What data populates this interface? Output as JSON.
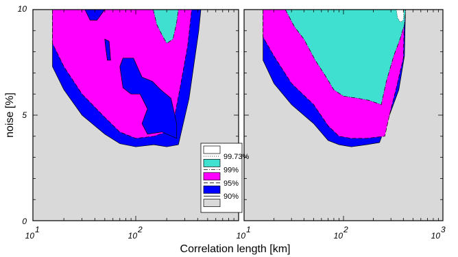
{
  "chart_data": {
    "type": "area",
    "subtype": "confidence-contour",
    "xlabel": "Correlation length [km]",
    "ylabel": "noise [%]",
    "xscale": "log",
    "xlim": [
      10,
      1000
    ],
    "ylim": [
      0,
      10
    ],
    "x_tick_labels": [
      {
        "base": "10",
        "exp": "1"
      },
      {
        "base": "10",
        "exp": "2"
      },
      {
        "base": "10",
        "exp": "3"
      }
    ],
    "y_tick_labels": [
      "0",
      "5",
      "10"
    ],
    "grid": false,
    "legend_placement": "bottom-center",
    "legend": [
      {
        "label": "99.73%",
        "fill": "#ffffff",
        "line": "dotted"
      },
      {
        "label": "99%",
        "fill": "#40e0d0",
        "line": "dash-dot"
      },
      {
        "label": "95%",
        "fill": "#ff00ff",
        "line": "dashed"
      },
      {
        "label": "90%",
        "fill": "#0000ff",
        "line": "solid"
      },
      {
        "label": "",
        "fill": "#d9d9d9",
        "line": "none"
      }
    ],
    "colors": {
      "background": "#d9d9d9",
      "c90": "#0000ff",
      "c95": "#ff00ff",
      "c99": "#40e0d0",
      "c9973": "#ffffff"
    },
    "panels": [
      {
        "name": "left",
        "regions": [
          {
            "level": "90%",
            "fill": "#0000ff",
            "line": "solid",
            "points": [
              [
                15.5,
                10
              ],
              [
                15.5,
                7.3
              ],
              [
                20,
                6.2
              ],
              [
                30,
                5.0
              ],
              [
                50,
                4.1
              ],
              [
                70,
                3.65
              ],
              [
                100,
                3.5
              ],
              [
                150,
                3.6
              ],
              [
                200,
                3.5
              ],
              [
                260,
                3.6
              ],
              [
                330,
                5.8
              ],
              [
                410,
                9.0
              ],
              [
                430,
                10
              ]
            ]
          },
          {
            "level": "95%",
            "fill": "#ff00ff",
            "line": "dashed",
            "points": [
              [
                15.5,
                10
              ],
              [
                15.5,
                8.4
              ],
              [
                20,
                7.3
              ],
              [
                30,
                6.0
              ],
              [
                50,
                4.9
              ],
              [
                70,
                4.2
              ],
              [
                100,
                3.9
              ],
              [
                150,
                4.0
              ],
              [
                200,
                4.2
              ],
              [
                240,
                5.0
              ],
              [
                270,
                6.3
              ],
              [
                320,
                8.3
              ],
              [
                350,
                10
              ]
            ]
          },
          {
            "level": "90% (inner)",
            "fill": "#0000ff",
            "line": "solid",
            "points": [
              [
                32,
                10
              ],
              [
                36,
                9.5
              ],
              [
                42,
                9.5
              ],
              [
                50,
                10
              ]
            ]
          },
          {
            "level": "90% (inner)",
            "fill": "#0000ff",
            "line": "solid",
            "points": [
              [
                75,
                7.7
              ],
              [
                95,
                7.7
              ],
              [
                115,
                6.8
              ],
              [
                145,
                6.6
              ],
              [
                175,
                6.2
              ],
              [
                220,
                5.8
              ],
              [
                250,
                4.6
              ],
              [
                250,
                3.9
              ],
              [
                180,
                4.2
              ],
              [
                130,
                4.1
              ],
              [
                115,
                4.6
              ],
              [
                130,
                5.3
              ],
              [
                110,
                6.0
              ],
              [
                90,
                6.0
              ],
              [
                75,
                6.3
              ],
              [
                70,
                7.3
              ]
            ]
          },
          {
            "level": "90% (inner)",
            "fill": "#0000ff",
            "line": "solid",
            "points": [
              [
                50,
                8.6
              ],
              [
                55,
                8.5
              ],
              [
                57,
                7.6
              ],
              [
                53,
                7.6
              ],
              [
                51,
                8.2
              ]
            ]
          },
          {
            "level": "99%",
            "fill": "#40e0d0",
            "line": "dash-dot",
            "points": [
              [
                148,
                10
              ],
              [
                160,
                9.3
              ],
              [
                180,
                8.8
              ],
              [
                200,
                8.4
              ],
              [
                230,
                8.6
              ],
              [
                250,
                9.4
              ],
              [
                260,
                10
              ]
            ]
          }
        ]
      },
      {
        "name": "right",
        "regions": [
          {
            "level": "90%",
            "fill": "#0000ff",
            "line": "solid",
            "points": [
              [
                15.5,
                10
              ],
              [
                15.5,
                7.6
              ],
              [
                20,
                6.5
              ],
              [
                30,
                5.5
              ],
              [
                50,
                4.6
              ],
              [
                70,
                3.8
              ],
              [
                90,
                3.6
              ],
              [
                120,
                3.5
              ],
              [
                170,
                3.6
              ],
              [
                230,
                3.7
              ],
              [
                280,
                4.8
              ],
              [
                360,
                6.2
              ],
              [
                410,
                7.8
              ],
              [
                420,
                10
              ]
            ]
          },
          {
            "level": "95%",
            "fill": "#ff00ff",
            "line": "dashed",
            "points": [
              [
                15.5,
                10
              ],
              [
                15.5,
                8.7
              ],
              [
                20,
                7.8
              ],
              [
                30,
                6.5
              ],
              [
                50,
                5.5
              ],
              [
                70,
                4.5
              ],
              [
                90,
                4.0
              ],
              [
                120,
                3.9
              ],
              [
                170,
                3.9
              ],
              [
                260,
                4.0
              ],
              [
                290,
                5.0
              ],
              [
                340,
                6.3
              ],
              [
                400,
                7.7
              ],
              [
                410,
                10
              ]
            ]
          },
          {
            "level": "99%",
            "fill": "#40e0d0",
            "line": "dash-dot",
            "points": [
              [
                26,
                10
              ],
              [
                32,
                9.2
              ],
              [
                40,
                8.6
              ],
              [
                52,
                7.6
              ],
              [
                65,
                6.9
              ],
              [
                80,
                6.2
              ],
              [
                100,
                5.9
              ],
              [
                140,
                5.8
              ],
              [
                180,
                5.7
              ],
              [
                240,
                5.5
              ],
              [
                270,
                6.6
              ],
              [
                320,
                7.8
              ],
              [
                370,
                8.6
              ],
              [
                410,
                9.3
              ],
              [
                420,
                10
              ]
            ]
          },
          {
            "level": "99.73%",
            "fill": "#ffffff",
            "line": "dotted",
            "points": [
              [
                340,
                10
              ],
              [
                350,
                9.6
              ],
              [
                375,
                9.4
              ],
              [
                400,
                9.5
              ],
              [
                405,
                10
              ]
            ]
          }
        ]
      }
    ]
  }
}
